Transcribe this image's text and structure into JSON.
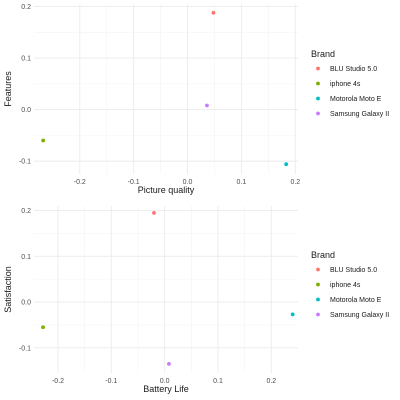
{
  "legend": {
    "title": "Brand",
    "entries": [
      {
        "name": "BLU Studio 5.0",
        "color": "#F8766D"
      },
      {
        "name": "iphone 4s",
        "color": "#7CAE00"
      },
      {
        "name": "Motorola Moto E",
        "color": "#00BFC4"
      },
      {
        "name": "Samsung Galaxy II",
        "color": "#C77CFF"
      }
    ]
  },
  "chart_data": [
    {
      "type": "scatter",
      "title": "",
      "xlabel": "Picture quality",
      "ylabel": "Features",
      "xlim": [
        -0.285,
        0.205
      ],
      "ylim": [
        -0.125,
        0.205
      ],
      "xticks": [
        -0.2,
        -0.1,
        0.0,
        0.1,
        0.2
      ],
      "xtick_labels": [
        "-0.2",
        "-0.1",
        "0.0",
        "0.1",
        "0.2"
      ],
      "yticks": [
        -0.1,
        0.0,
        0.1,
        0.2
      ],
      "ytick_labels": [
        "-0.1",
        "0.0",
        "0.1",
        "0.2"
      ],
      "grid": true,
      "legend_position": "right",
      "series": [
        {
          "name": "BLU Studio 5.0",
          "x": [
            0.048
          ],
          "y": [
            0.188
          ]
        },
        {
          "name": "iphone 4s",
          "x": [
            -0.268
          ],
          "y": [
            -0.06
          ]
        },
        {
          "name": "Motorola Moto E",
          "x": [
            0.183
          ],
          "y": [
            -0.106
          ]
        },
        {
          "name": "Samsung Galaxy II",
          "x": [
            0.036
          ],
          "y": [
            0.008
          ]
        }
      ]
    },
    {
      "type": "scatter",
      "title": "",
      "xlabel": "Battery Life",
      "ylabel": "Satisfaction",
      "xlim": [
        -0.245,
        0.25
      ],
      "ylim": [
        -0.155,
        0.21
      ],
      "xticks": [
        -0.2,
        -0.1,
        0.0,
        0.1,
        0.2
      ],
      "xtick_labels": [
        "-0.2",
        "-0.1",
        "0.0",
        "0.1",
        "0.2"
      ],
      "yticks": [
        -0.1,
        0.0,
        0.1,
        0.2
      ],
      "ytick_labels": [
        "-0.1",
        "0.0",
        "0.1",
        "0.2"
      ],
      "grid": true,
      "legend_position": "right",
      "series": [
        {
          "name": "BLU Studio 5.0",
          "x": [
            -0.02
          ],
          "y": [
            0.195
          ]
        },
        {
          "name": "iphone 4s",
          "x": [
            -0.228
          ],
          "y": [
            -0.055
          ]
        },
        {
          "name": "Motorola Moto E",
          "x": [
            0.24
          ],
          "y": [
            -0.027
          ]
        },
        {
          "name": "Samsung Galaxy II",
          "x": [
            0.008
          ],
          "y": [
            -0.135
          ]
        }
      ]
    }
  ]
}
